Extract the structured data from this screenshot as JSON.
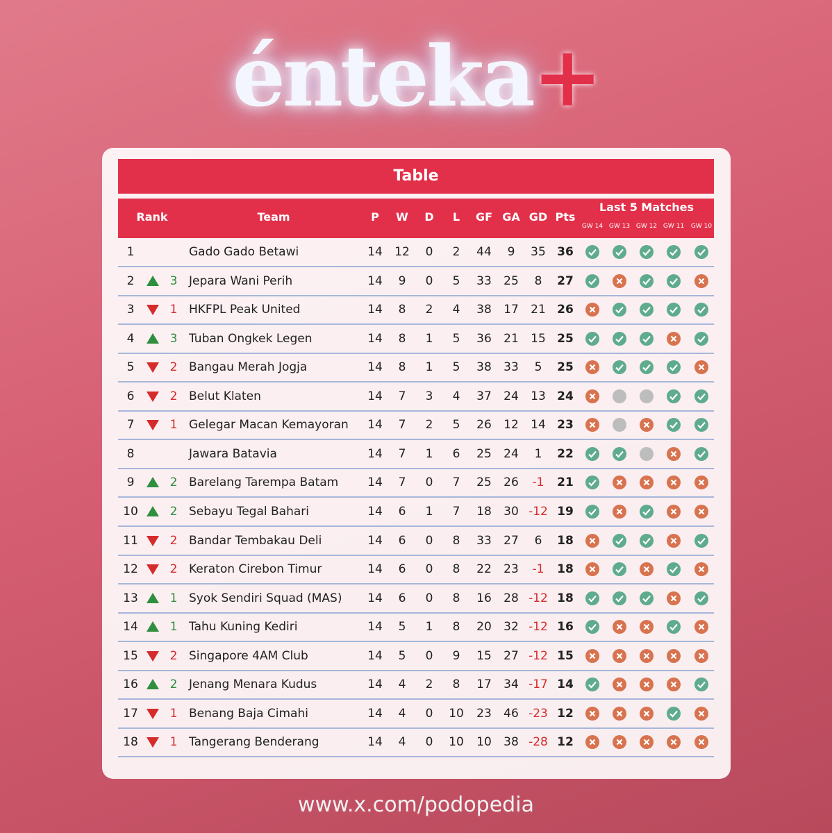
{
  "logo": {
    "text": "énteka",
    "plus": "+"
  },
  "table": {
    "title": "Table",
    "headers": {
      "rank": "Rank",
      "team": "Team",
      "stats": [
        "P",
        "W",
        "D",
        "L",
        "GF",
        "GA",
        "GD",
        "Pts"
      ],
      "last5": "Last 5 Matches",
      "gameweeks": [
        "GW 14",
        "GW 13",
        "GW 12",
        "GW 11",
        "GW 10"
      ]
    },
    "rows": [
      {
        "rank": 1,
        "trend": "none",
        "change": null,
        "team": "Gado Gado Betawi",
        "stats": [
          14,
          12,
          0,
          2,
          44,
          9,
          35,
          36
        ],
        "form": [
          "W",
          "W",
          "W",
          "W",
          "W"
        ]
      },
      {
        "rank": 2,
        "trend": "up",
        "change": 3,
        "team": "Jepara Wani Perih",
        "stats": [
          14,
          9,
          0,
          5,
          33,
          25,
          8,
          27
        ],
        "form": [
          "W",
          "L",
          "W",
          "W",
          "L"
        ]
      },
      {
        "rank": 3,
        "trend": "down",
        "change": 1,
        "team": "HKFPL Peak United",
        "stats": [
          14,
          8,
          2,
          4,
          38,
          17,
          21,
          26
        ],
        "form": [
          "L",
          "W",
          "W",
          "W",
          "W"
        ]
      },
      {
        "rank": 4,
        "trend": "up",
        "change": 3,
        "team": "Tuban Ongkek Legen",
        "stats": [
          14,
          8,
          1,
          5,
          36,
          21,
          15,
          25
        ],
        "form": [
          "W",
          "W",
          "W",
          "L",
          "W"
        ]
      },
      {
        "rank": 5,
        "trend": "down",
        "change": 2,
        "team": "Bangau Merah Jogja",
        "stats": [
          14,
          8,
          1,
          5,
          38,
          33,
          5,
          25
        ],
        "form": [
          "L",
          "W",
          "W",
          "W",
          "L"
        ]
      },
      {
        "rank": 6,
        "trend": "down",
        "change": 2,
        "team": "Belut Klaten",
        "stats": [
          14,
          7,
          3,
          4,
          37,
          24,
          13,
          24
        ],
        "form": [
          "L",
          "D",
          "D",
          "W",
          "W"
        ]
      },
      {
        "rank": 7,
        "trend": "down",
        "change": 1,
        "team": "Gelegar Macan Kemayoran",
        "stats": [
          14,
          7,
          2,
          5,
          26,
          12,
          14,
          23
        ],
        "form": [
          "L",
          "D",
          "L",
          "W",
          "W"
        ]
      },
      {
        "rank": 8,
        "trend": "none",
        "change": null,
        "team": "Jawara Batavia",
        "stats": [
          14,
          7,
          1,
          6,
          25,
          24,
          1,
          22
        ],
        "form": [
          "W",
          "W",
          "D",
          "L",
          "W"
        ]
      },
      {
        "rank": 9,
        "trend": "up",
        "change": 2,
        "team": "Barelang Tarempa Batam",
        "stats": [
          14,
          7,
          0,
          7,
          25,
          26,
          -1,
          21
        ],
        "form": [
          "W",
          "L",
          "L",
          "L",
          "L"
        ]
      },
      {
        "rank": 10,
        "trend": "up",
        "change": 2,
        "team": "Sebayu Tegal Bahari",
        "stats": [
          14,
          6,
          1,
          7,
          18,
          30,
          -12,
          19
        ],
        "form": [
          "W",
          "L",
          "W",
          "L",
          "L"
        ]
      },
      {
        "rank": 11,
        "trend": "down",
        "change": 2,
        "team": "Bandar Tembakau Deli",
        "stats": [
          14,
          6,
          0,
          8,
          33,
          27,
          6,
          18
        ],
        "form": [
          "L",
          "W",
          "W",
          "L",
          "W"
        ]
      },
      {
        "rank": 12,
        "trend": "down",
        "change": 2,
        "team": "Keraton Cirebon Timur",
        "stats": [
          14,
          6,
          0,
          8,
          22,
          23,
          -1,
          18
        ],
        "form": [
          "L",
          "W",
          "L",
          "W",
          "L"
        ]
      },
      {
        "rank": 13,
        "trend": "up",
        "change": 1,
        "team": "Syok Sendiri Squad (MAS)",
        "stats": [
          14,
          6,
          0,
          8,
          16,
          28,
          -12,
          18
        ],
        "form": [
          "W",
          "W",
          "W",
          "L",
          "W"
        ]
      },
      {
        "rank": 14,
        "trend": "up",
        "change": 1,
        "team": "Tahu Kuning Kediri",
        "stats": [
          14,
          5,
          1,
          8,
          20,
          32,
          -12,
          16
        ],
        "form": [
          "W",
          "L",
          "L",
          "W",
          "L"
        ]
      },
      {
        "rank": 15,
        "trend": "down",
        "change": 2,
        "team": "Singapore 4AM Club",
        "stats": [
          14,
          5,
          0,
          9,
          15,
          27,
          -12,
          15
        ],
        "form": [
          "L",
          "L",
          "L",
          "L",
          "L"
        ]
      },
      {
        "rank": 16,
        "trend": "up",
        "change": 2,
        "team": "Jenang Menara Kudus",
        "stats": [
          14,
          4,
          2,
          8,
          17,
          34,
          -17,
          14
        ],
        "form": [
          "W",
          "L",
          "L",
          "L",
          "W"
        ]
      },
      {
        "rank": 17,
        "trend": "down",
        "change": 1,
        "team": "Benang Baja Cimahi",
        "stats": [
          14,
          4,
          0,
          10,
          23,
          46,
          -23,
          12
        ],
        "form": [
          "L",
          "L",
          "L",
          "W",
          "L"
        ]
      },
      {
        "rank": 18,
        "trend": "down",
        "change": 1,
        "team": "Tangerang Benderang",
        "stats": [
          14,
          4,
          0,
          10,
          10,
          38,
          -28,
          12
        ],
        "form": [
          "L",
          "L",
          "L",
          "L",
          "L"
        ]
      }
    ]
  },
  "footer": "www.x.com/podopedia"
}
